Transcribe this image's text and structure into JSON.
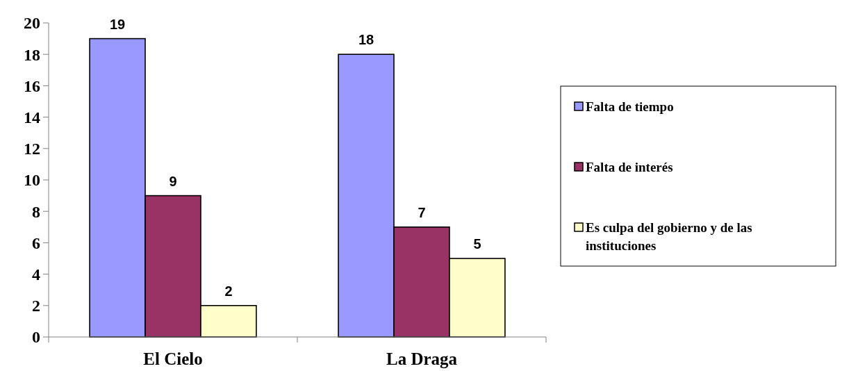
{
  "chart_data": {
    "type": "bar",
    "categories": [
      "El Cielo",
      "La Draga"
    ],
    "series": [
      {
        "name": "Falta de tiempo",
        "color": "#9999ff",
        "values": [
          19,
          18
        ]
      },
      {
        "name": "Falta de interés",
        "color": "#993366",
        "values": [
          9,
          7
        ]
      },
      {
        "name": "Es culpa del gobierno y de las instituciones",
        "color": "#ffffcc",
        "values": [
          2,
          5
        ]
      }
    ],
    "ylim": [
      0,
      20
    ],
    "yticks": [
      0,
      2,
      4,
      6,
      8,
      10,
      12,
      14,
      16,
      18,
      20
    ],
    "grid": false,
    "legend": "right",
    "data_labels": true
  }
}
